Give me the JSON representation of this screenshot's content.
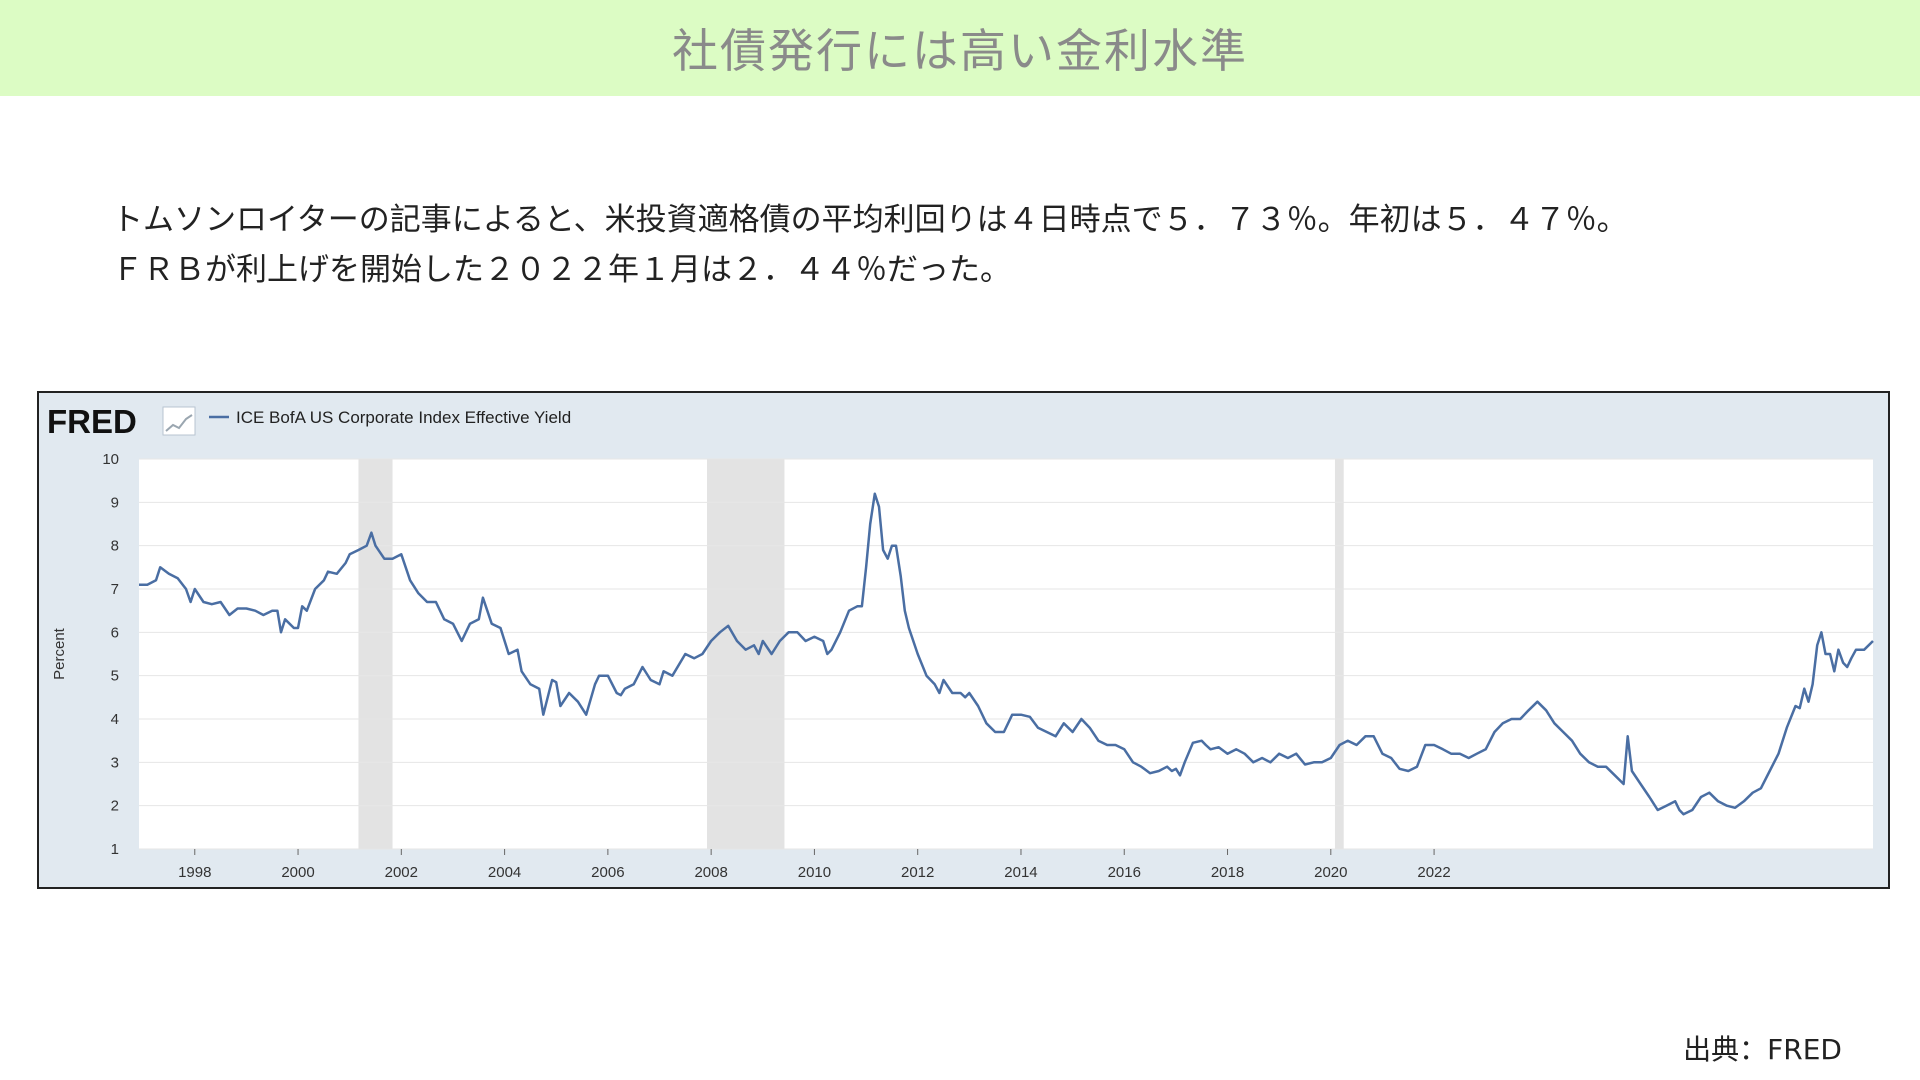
{
  "header": {
    "title": "社債発行には高い金利水準"
  },
  "body": {
    "line1": "トムソンロイターの記事によると、米投資適格債の平均利回りは４日時点で５．７３％。年初は５．４７％。",
    "line2": "ＦＲＢが利上げを開始した２０２２年１月は２．４４％だった。"
  },
  "chart_data": {
    "type": "line",
    "logo": "FRED",
    "series": [
      {
        "name": "ICE BofA US Corporate Index Effective Yield",
        "color": "#4a6ea3",
        "points": [
          [
            1996.92,
            7.1
          ],
          [
            1997.08,
            7.1
          ],
          [
            1997.25,
            7.2
          ],
          [
            1997.33,
            7.5
          ],
          [
            1997.5,
            7.35
          ],
          [
            1997.67,
            7.25
          ],
          [
            1997.83,
            7.0
          ],
          [
            1997.92,
            6.7
          ],
          [
            1998.0,
            7.0
          ],
          [
            1998.17,
            6.7
          ],
          [
            1998.33,
            6.65
          ],
          [
            1998.5,
            6.7
          ],
          [
            1998.67,
            6.4
          ],
          [
            1998.83,
            6.55
          ],
          [
            1999.0,
            6.55
          ],
          [
            1999.17,
            6.5
          ],
          [
            1999.33,
            6.4
          ],
          [
            1999.5,
            6.5
          ],
          [
            1999.6,
            6.5
          ],
          [
            1999.67,
            6.0
          ],
          [
            1999.75,
            6.3
          ],
          [
            1999.92,
            6.1
          ],
          [
            2000.0,
            6.1
          ],
          [
            2000.08,
            6.6
          ],
          [
            2000.17,
            6.5
          ],
          [
            2000.33,
            7.0
          ],
          [
            2000.5,
            7.2
          ],
          [
            2000.58,
            7.4
          ],
          [
            2000.75,
            7.35
          ],
          [
            2000.92,
            7.6
          ],
          [
            2001.0,
            7.8
          ],
          [
            2001.17,
            7.9
          ],
          [
            2001.33,
            8.0
          ],
          [
            2001.42,
            8.3
          ],
          [
            2001.5,
            8.0
          ],
          [
            2001.67,
            7.7
          ],
          [
            2001.83,
            7.7
          ],
          [
            2002.0,
            7.8
          ],
          [
            2002.17,
            7.2
          ],
          [
            2002.33,
            6.9
          ],
          [
            2002.5,
            6.7
          ],
          [
            2002.67,
            6.7
          ],
          [
            2002.83,
            6.3
          ],
          [
            2003.0,
            6.2
          ],
          [
            2003.17,
            5.8
          ],
          [
            2003.33,
            6.2
          ],
          [
            2003.5,
            6.3
          ],
          [
            2003.58,
            6.8
          ],
          [
            2003.75,
            6.2
          ],
          [
            2003.92,
            6.1
          ],
          [
            2004.08,
            5.5
          ],
          [
            2004.25,
            5.6
          ],
          [
            2004.33,
            5.1
          ],
          [
            2004.5,
            4.8
          ],
          [
            2004.67,
            4.7
          ],
          [
            2004.75,
            4.1
          ],
          [
            2004.92,
            4.9
          ],
          [
            2005.0,
            4.85
          ],
          [
            2005.08,
            4.3
          ],
          [
            2005.25,
            4.6
          ],
          [
            2005.42,
            4.4
          ],
          [
            2005.58,
            4.1
          ],
          [
            2005.75,
            4.8
          ],
          [
            2005.83,
            5.0
          ],
          [
            2006.0,
            5.0
          ],
          [
            2006.17,
            4.6
          ],
          [
            2006.25,
            4.55
          ],
          [
            2006.33,
            4.7
          ],
          [
            2006.5,
            4.8
          ],
          [
            2006.67,
            5.2
          ],
          [
            2006.83,
            4.9
          ],
          [
            2007.0,
            4.8
          ],
          [
            2007.08,
            5.1
          ],
          [
            2007.25,
            5.0
          ],
          [
            2007.5,
            5.5
          ],
          [
            2007.67,
            5.4
          ],
          [
            2007.83,
            5.5
          ],
          [
            2008.0,
            5.8
          ],
          [
            2008.17,
            6.0
          ],
          [
            2008.33,
            6.15
          ],
          [
            2008.5,
            5.8
          ],
          [
            2008.67,
            5.6
          ],
          [
            2008.83,
            5.7
          ],
          [
            2008.92,
            5.5
          ],
          [
            2009.0,
            5.8
          ],
          [
            2009.17,
            5.5
          ],
          [
            2009.33,
            5.8
          ],
          [
            2009.5,
            6.0
          ],
          [
            2009.67,
            6.0
          ],
          [
            2009.83,
            5.8
          ],
          [
            2010.0,
            5.9
          ],
          [
            2010.17,
            5.8
          ],
          [
            2010.25,
            5.5
          ],
          [
            2010.33,
            5.6
          ],
          [
            2010.5,
            6.0
          ],
          [
            2010.67,
            6.5
          ],
          [
            2010.83,
            6.6
          ],
          [
            2010.92,
            6.6
          ],
          [
            2011.0,
            7.5
          ],
          [
            2011.08,
            8.5
          ],
          [
            2011.17,
            9.2
          ],
          [
            2011.25,
            8.9
          ],
          [
            2011.33,
            7.9
          ],
          [
            2011.42,
            7.7
          ],
          [
            2011.5,
            8.0
          ],
          [
            2011.58,
            8.0
          ],
          [
            2011.67,
            7.3
          ],
          [
            2011.75,
            6.5
          ],
          [
            2011.83,
            6.1
          ],
          [
            2012.0,
            5.5
          ],
          [
            2012.17,
            5.0
          ],
          [
            2012.33,
            4.8
          ],
          [
            2012.42,
            4.6
          ],
          [
            2012.5,
            4.9
          ],
          [
            2012.67,
            4.6
          ],
          [
            2012.83,
            4.6
          ],
          [
            2012.92,
            4.5
          ],
          [
            2013.0,
            4.6
          ],
          [
            2013.17,
            4.3
          ],
          [
            2013.33,
            3.9
          ],
          [
            2013.5,
            3.7
          ],
          [
            2013.67,
            3.7
          ],
          [
            2013.83,
            4.1
          ],
          [
            2014.0,
            4.1
          ],
          [
            2014.17,
            4.05
          ],
          [
            2014.33,
            3.8
          ],
          [
            2014.5,
            3.7
          ],
          [
            2014.67,
            3.6
          ],
          [
            2014.83,
            3.9
          ],
          [
            2015.0,
            3.7
          ],
          [
            2015.17,
            4.0
          ],
          [
            2015.33,
            3.8
          ],
          [
            2015.5,
            3.5
          ],
          [
            2015.67,
            3.4
          ],
          [
            2015.83,
            3.4
          ],
          [
            2016.0,
            3.3
          ],
          [
            2016.17,
            3.0
          ],
          [
            2016.33,
            2.9
          ],
          [
            2016.5,
            2.75
          ],
          [
            2016.67,
            2.8
          ],
          [
            2016.83,
            2.9
          ],
          [
            2016.92,
            2.8
          ],
          [
            2017.0,
            2.85
          ],
          [
            2017.08,
            2.7
          ],
          [
            2017.17,
            3.0
          ],
          [
            2017.33,
            3.45
          ],
          [
            2017.5,
            3.5
          ],
          [
            2017.58,
            3.4
          ],
          [
            2017.67,
            3.3
          ],
          [
            2017.83,
            3.35
          ],
          [
            2018.0,
            3.2
          ],
          [
            2018.17,
            3.3
          ],
          [
            2018.33,
            3.2
          ],
          [
            2018.5,
            3.0
          ],
          [
            2018.67,
            3.1
          ],
          [
            2018.83,
            3.0
          ],
          [
            2019.0,
            3.2
          ],
          [
            2019.17,
            3.1
          ],
          [
            2019.33,
            3.2
          ],
          [
            2019.5,
            2.95
          ],
          [
            2019.67,
            3.0
          ],
          [
            2019.83,
            3.0
          ],
          [
            2020.0,
            3.1
          ],
          [
            2020.17,
            3.4
          ],
          [
            2020.33,
            3.5
          ],
          [
            2020.5,
            3.4
          ],
          [
            2020.67,
            3.6
          ],
          [
            2020.83,
            3.6
          ],
          [
            2021.0,
            3.2
          ],
          [
            2021.17,
            3.1
          ],
          [
            2021.33,
            2.85
          ],
          [
            2021.5,
            2.8
          ],
          [
            2021.67,
            2.9
          ],
          [
            2021.83,
            3.4
          ],
          [
            2022.0,
            3.4
          ],
          [
            2022.17,
            3.3
          ],
          [
            2022.33,
            3.2
          ],
          [
            2022.5,
            3.2
          ],
          [
            2022.67,
            3.1
          ],
          [
            2022.83,
            3.2
          ],
          [
            2023.0,
            3.3
          ],
          [
            2023.17,
            3.7
          ],
          [
            2023.33,
            3.9
          ],
          [
            2023.5,
            4.0
          ],
          [
            2023.67,
            4.0
          ],
          [
            2023.83,
            4.2
          ],
          [
            2024.0,
            4.4
          ],
          [
            2024.17,
            4.2
          ],
          [
            2024.33,
            3.9
          ],
          [
            2024.5,
            3.7
          ],
          [
            2024.67,
            3.5
          ],
          [
            2024.83,
            3.2
          ],
          [
            2025.0,
            3.0
          ],
          [
            2025.17,
            2.9
          ],
          [
            2025.33,
            2.9
          ],
          [
            2025.5,
            2.7
          ],
          [
            2025.67,
            2.5
          ],
          [
            2025.75,
            3.6
          ],
          [
            2025.83,
            2.8
          ],
          [
            2026.0,
            2.5
          ],
          [
            2026.17,
            2.2
          ],
          [
            2026.33,
            1.9
          ],
          [
            2026.5,
            2.0
          ],
          [
            2026.67,
            2.1
          ],
          [
            2026.75,
            1.9
          ],
          [
            2026.83,
            1.8
          ],
          [
            2027.0,
            1.9
          ],
          [
            2027.17,
            2.2
          ],
          [
            2027.33,
            2.3
          ],
          [
            2027.5,
            2.1
          ],
          [
            2027.67,
            2.0
          ],
          [
            2027.83,
            1.95
          ],
          [
            2028.0,
            2.1
          ],
          [
            2028.17,
            2.3
          ],
          [
            2028.33,
            2.4
          ],
          [
            2028.5,
            2.8
          ],
          [
            2028.67,
            3.2
          ],
          [
            2028.83,
            3.8
          ],
          [
            2029.0,
            4.3
          ],
          [
            2029.08,
            4.25
          ],
          [
            2029.17,
            4.7
          ],
          [
            2029.25,
            4.4
          ],
          [
            2029.33,
            4.8
          ],
          [
            2029.42,
            5.7
          ],
          [
            2029.5,
            6.0
          ],
          [
            2029.58,
            5.5
          ],
          [
            2029.67,
            5.5
          ],
          [
            2029.75,
            5.1
          ],
          [
            2029.83,
            5.6
          ],
          [
            2029.92,
            5.3
          ],
          [
            2030.0,
            5.2
          ],
          [
            2030.08,
            5.4
          ],
          [
            2030.17,
            5.6
          ],
          [
            2030.33,
            5.6
          ],
          [
            2030.5,
            5.8
          ]
        ]
      }
    ],
    "x_ticks": [
      "1998",
      "2000",
      "2002",
      "2004",
      "2006",
      "2008",
      "2010",
      "2012",
      "2014",
      "2016",
      "2018",
      "2020",
      "2022"
    ],
    "x_tick_positions": [
      1998,
      2000,
      2002,
      2004,
      2006,
      2008,
      2010,
      2012,
      2014,
      2016,
      2018,
      2020,
      2022
    ],
    "y_ticks": [
      "10",
      "9",
      "8",
      "7",
      "6",
      "5",
      "4",
      "3",
      "2",
      "1"
    ],
    "y_tick_values": [
      10,
      9,
      8,
      7,
      6,
      5,
      4,
      3,
      2,
      1
    ],
    "ylabel": "Percent",
    "xlim": [
      1996.92,
      2030.5
    ],
    "ylim": [
      1,
      10
    ],
    "recessions": [
      [
        2001.17,
        2001.83
      ],
      [
        2007.92,
        2009.42
      ],
      [
        2020.08,
        2020.25
      ]
    ],
    "colors": {
      "recession": "#e3e3e3",
      "grid": "#e6e6e6",
      "plot_bg": "#ffffff",
      "frame_bg": "#e1e9f0"
    }
  },
  "source": {
    "text": "出典：FRED"
  }
}
